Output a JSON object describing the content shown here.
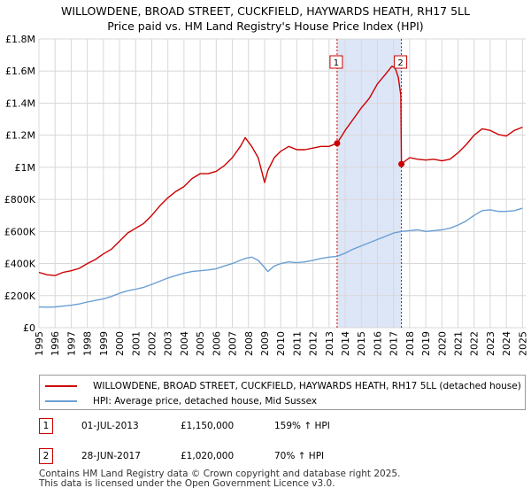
{
  "title_line1": "WILLOWDENE, BROAD STREET, CUCKFIELD, HAYWARDS HEATH, RH17 5LL",
  "title_line2": "Price paid vs. HM Land Registry's House Price Index (HPI)",
  "legend": {
    "property": "WILLOWDENE, BROAD STREET, CUCKFIELD, HAYWARDS HEATH, RH17 5LL (detached house)",
    "hpi": "HPI: Average price, detached house, Mid Sussex"
  },
  "transactions": [
    {
      "num": "1",
      "date": "01-JUL-2013",
      "price": "£1,150,000",
      "hpi": "159% ↑ HPI"
    },
    {
      "num": "2",
      "date": "28-JUN-2017",
      "price": "£1,020,000",
      "hpi": "70% ↑ HPI"
    }
  ],
  "footer_line1": "Contains HM Land Registry data © Crown copyright and database right 2025.",
  "footer_line2": "This data is licensed under the Open Government Licence v3.0.",
  "colors": {
    "property": "#cc0000",
    "hpi": "#6a9fd4",
    "shade": "#dde6f7",
    "grid": "#d8d8d8"
  },
  "chart_data": {
    "type": "line",
    "title": "Price paid vs. HM Land Registry's House Price Index (HPI)",
    "xlim": [
      1995,
      2025.2
    ],
    "ylim": [
      0,
      1800000
    ],
    "xticks": [
      1995,
      1996,
      1997,
      1998,
      1999,
      2000,
      2001,
      2002,
      2003,
      2004,
      2005,
      2006,
      2007,
      2008,
      2009,
      2010,
      2011,
      2012,
      2013,
      2014,
      2015,
      2016,
      2017,
      2018,
      2019,
      2020,
      2021,
      2022,
      2023,
      2024,
      2025
    ],
    "yticks": [
      {
        "value": 0,
        "label": "£0"
      },
      {
        "value": 200000,
        "label": "£200K"
      },
      {
        "value": 400000,
        "label": "£400K"
      },
      {
        "value": 600000,
        "label": "£600K"
      },
      {
        "value": 800000,
        "label": "£800K"
      },
      {
        "value": 1000000,
        "label": "£1M"
      },
      {
        "value": 1200000,
        "label": "£1.2M"
      },
      {
        "value": 1400000,
        "label": "£1.4M"
      },
      {
        "value": 1600000,
        "label": "£1.6M"
      },
      {
        "value": 1800000,
        "label": "£1.8M"
      }
    ],
    "shaded_period": [
      2013.5,
      2017.49
    ],
    "markers": [
      {
        "label": "1",
        "x": 2013.5,
        "y": 1150000
      },
      {
        "label": "2",
        "x": 2017.49,
        "y": 1020000
      }
    ],
    "series": [
      {
        "name": "WILLOWDENE, BROAD STREET, CUCKFIELD, HAYWARDS HEATH, RH17 5LL (detached house)",
        "x": [
          1995,
          1995.5,
          1996,
          1996.5,
          1997,
          1997.5,
          1998,
          1998.5,
          1999,
          1999.5,
          2000,
          2000.5,
          2001,
          2001.5,
          2002,
          2002.5,
          2003,
          2003.5,
          2004,
          2004.5,
          2005,
          2005.5,
          2006,
          2006.5,
          2007,
          2007.5,
          2007.8,
          2008.2,
          2008.6,
          2009,
          2009.2,
          2009.6,
          2010,
          2010.5,
          2011,
          2011.5,
          2012,
          2012.5,
          2013,
          2013.5,
          2014,
          2014.5,
          2015,
          2015.5,
          2016,
          2016.5,
          2016.9,
          2017.1,
          2017.3,
          2017.45,
          2017.49,
          2017.6,
          2018,
          2018.5,
          2019,
          2019.5,
          2020,
          2020.5,
          2021,
          2021.5,
          2022,
          2022.5,
          2023,
          2023.5,
          2024,
          2024.5,
          2025
        ],
        "values": [
          345000,
          330000,
          325000,
          345000,
          355000,
          370000,
          400000,
          425000,
          460000,
          490000,
          540000,
          590000,
          620000,
          650000,
          700000,
          760000,
          810000,
          850000,
          880000,
          930000,
          960000,
          960000,
          975000,
          1010000,
          1060000,
          1130000,
          1185000,
          1130000,
          1060000,
          905000,
          980000,
          1060000,
          1100000,
          1130000,
          1110000,
          1110000,
          1120000,
          1130000,
          1130000,
          1150000,
          1230000,
          1300000,
          1370000,
          1430000,
          1520000,
          1580000,
          1630000,
          1620000,
          1560000,
          1450000,
          1020000,
          1030000,
          1060000,
          1050000,
          1045000,
          1050000,
          1040000,
          1050000,
          1090000,
          1140000,
          1200000,
          1240000,
          1230000,
          1205000,
          1195000,
          1230000,
          1250000
        ]
      },
      {
        "name": "HPI: Average price, detached house, Mid Sussex",
        "x": [
          1995,
          1995.5,
          1996,
          1996.5,
          1997,
          1997.5,
          1998,
          1998.5,
          1999,
          1999.5,
          2000,
          2000.5,
          2001,
          2001.5,
          2002,
          2002.5,
          2003,
          2003.5,
          2004,
          2004.5,
          2005,
          2005.5,
          2006,
          2006.5,
          2007,
          2007.5,
          2007.8,
          2008.2,
          2008.6,
          2009,
          2009.2,
          2009.6,
          2010,
          2010.5,
          2011,
          2011.5,
          2012,
          2012.5,
          2013,
          2013.5,
          2014,
          2014.5,
          2015,
          2015.5,
          2016,
          2016.5,
          2017,
          2017.49,
          2018,
          2018.5,
          2019,
          2019.5,
          2020,
          2020.5,
          2021,
          2021.5,
          2022,
          2022.5,
          2023,
          2023.5,
          2024,
          2024.5,
          2025
        ],
        "values": [
          130000,
          128000,
          130000,
          135000,
          140000,
          148000,
          160000,
          170000,
          180000,
          195000,
          215000,
          230000,
          240000,
          252000,
          270000,
          290000,
          310000,
          325000,
          340000,
          350000,
          355000,
          360000,
          368000,
          385000,
          400000,
          420000,
          432000,
          440000,
          420000,
          375000,
          350000,
          385000,
          400000,
          410000,
          405000,
          410000,
          420000,
          432000,
          440000,
          445000,
          465000,
          490000,
          510000,
          530000,
          550000,
          570000,
          590000,
          600000,
          605000,
          610000,
          600000,
          605000,
          610000,
          620000,
          640000,
          665000,
          700000,
          730000,
          735000,
          725000,
          725000,
          730000,
          745000
        ]
      }
    ]
  }
}
